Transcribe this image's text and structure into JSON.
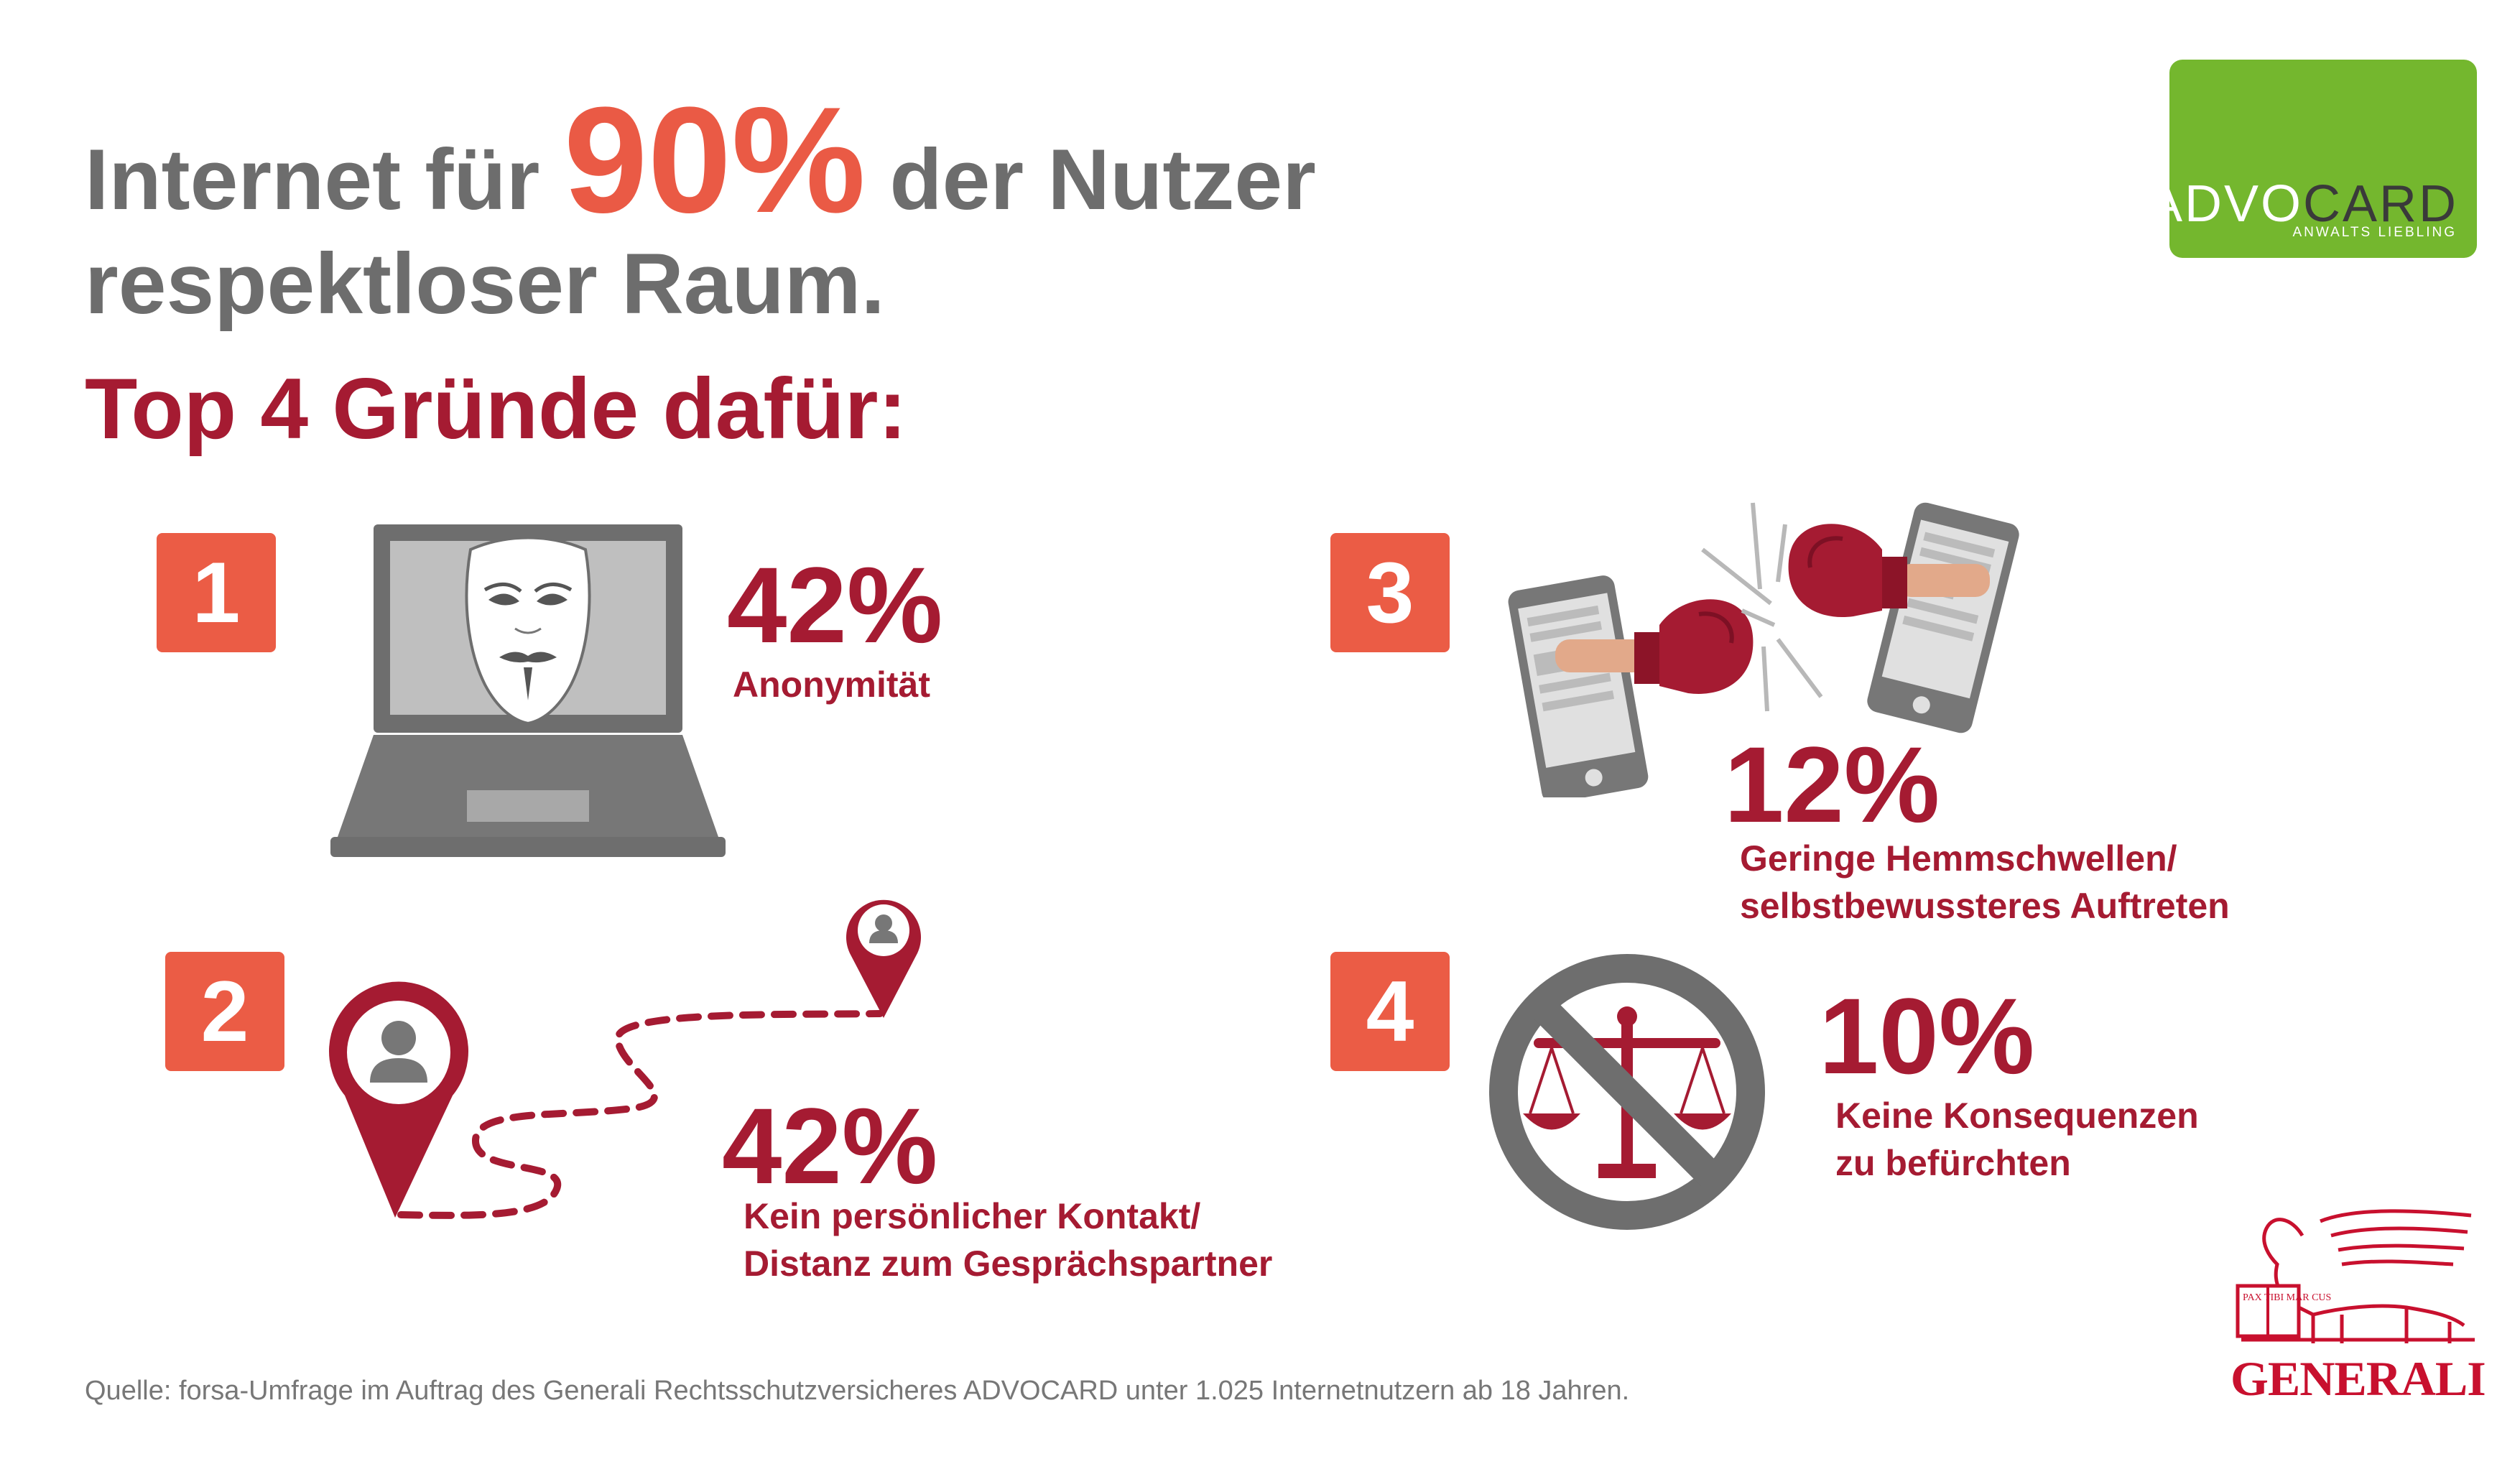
{
  "headline": {
    "part1": "Internet für ",
    "highlight": "90%",
    "part2": " der Nutzer",
    "line2": "respektloser Raum."
  },
  "subtitle": "Top 4 Gründe dafür:",
  "reasons": [
    {
      "number": "1",
      "percent": "42%",
      "label_lines": [
        "Anonymität"
      ]
    },
    {
      "number": "2",
      "percent": "42%",
      "label_lines": [
        "Kein persönlicher Kontakt/",
        "Distanz zum Gesprächspartner"
      ]
    },
    {
      "number": "3",
      "percent": "12%",
      "label_lines": [
        "Geringe Hemmschwellen/",
        "selbstbewussteres Auftreten"
      ]
    },
    {
      "number": "4",
      "percent": "10%",
      "label_lines": [
        "Keine Konsequenzen",
        "zu befürchten"
      ]
    }
  ],
  "source": "Quelle: forsa-Umfrage im Auftrag des Generali Rechtsschutzversicheres ADVOCARD unter 1.025 Internetnutzern ab 18 Jahren.",
  "advocard": {
    "brand_part1": "ADVO",
    "brand_part2": "CARD",
    "tagline": "ANWALTS LIEBLING"
  },
  "generali": {
    "name": "GENERALI",
    "book_text": "PAX TIBI MAR CUS"
  },
  "colors": {
    "accent": "#ea5a45",
    "maroon": "#a51b32",
    "gray": "#6d6d6d",
    "advocard_green": "#74b72e",
    "generali_red": "#c8102e"
  },
  "icons": [
    "laptop-icon",
    "mask-icon",
    "location-pin-icon",
    "route-dashed-line",
    "smartphone-icon",
    "boxing-glove-icon",
    "prohibited-icon",
    "scales-icon",
    "generali-lion-logo"
  ]
}
